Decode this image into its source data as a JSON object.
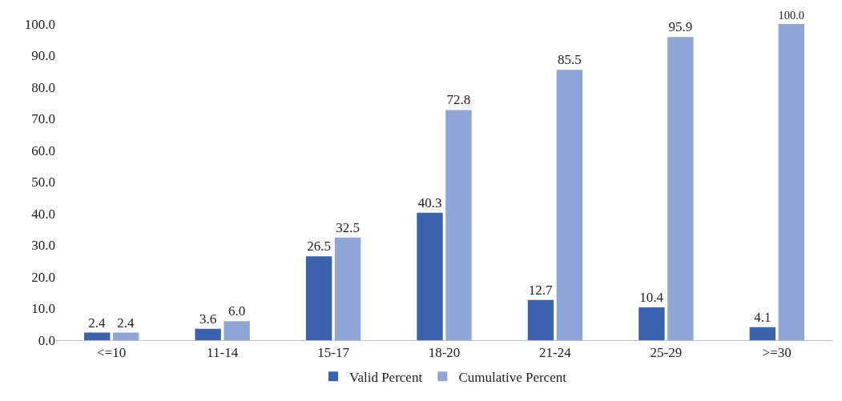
{
  "chart_data": {
    "type": "bar",
    "categories": [
      "<=10",
      "11-14",
      "15-17",
      "18-20",
      "21-24",
      "25-29",
      ">=30"
    ],
    "series": [
      {
        "name": "Valid Percent",
        "color": "#3a62ad",
        "values": [
          2.4,
          3.6,
          26.5,
          40.3,
          12.7,
          10.4,
          4.1
        ],
        "value_labels": [
          "2.4",
          "3.6",
          "26.5",
          "40.3",
          "12.7",
          "10.4",
          "4.1"
        ]
      },
      {
        "name": "Cumulative Percent",
        "color": "#8fa5d6",
        "values": [
          2.4,
          6.0,
          32.5,
          72.8,
          85.5,
          95.9,
          100.0
        ],
        "value_labels": [
          "2.4",
          "6.0",
          "32.5",
          "72.8",
          "85.5",
          "95.9",
          "100.0"
        ]
      }
    ],
    "ylim": [
      0,
      100
    ],
    "yticks": [
      {
        "value": 0,
        "label": "0.0"
      },
      {
        "value": 10,
        "label": "10.0"
      },
      {
        "value": 20,
        "label": "20.0"
      },
      {
        "value": 30,
        "label": "30.0"
      },
      {
        "value": 40,
        "label": "40.0"
      },
      {
        "value": 50,
        "label": "50.0"
      },
      {
        "value": 60,
        "label": "60.0"
      },
      {
        "value": 70,
        "label": "70.0"
      },
      {
        "value": 80,
        "label": "80.0"
      },
      {
        "value": 90,
        "label": "90.0"
      },
      {
        "value": 100,
        "label": "100.0"
      }
    ],
    "grid": false,
    "legend": "bottom"
  }
}
